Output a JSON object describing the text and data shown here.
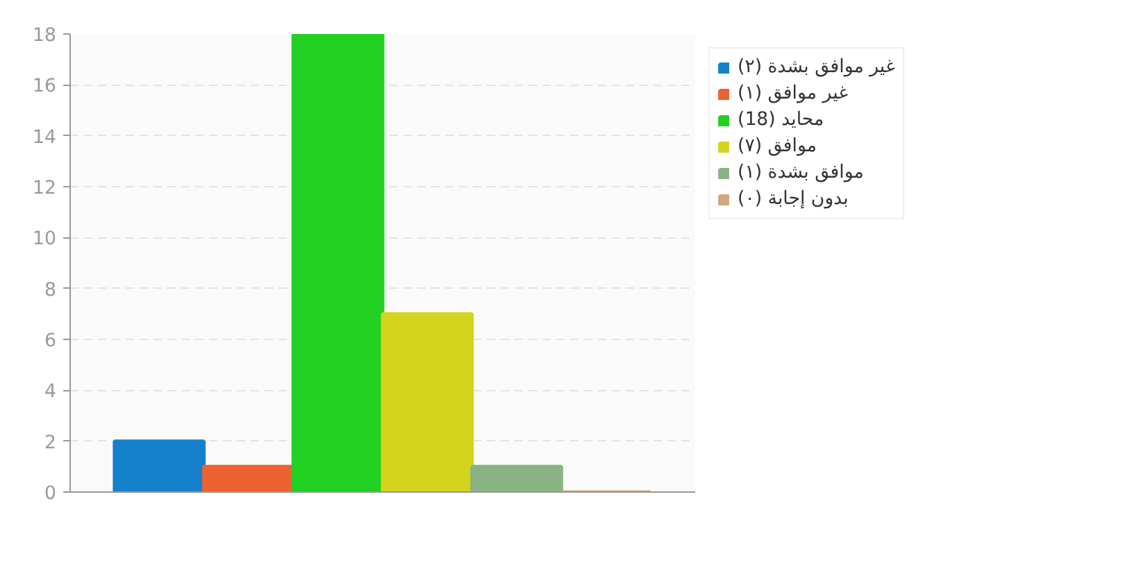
{
  "chart_data": {
    "type": "bar",
    "categories": [
      null
    ],
    "series": [
      {
        "name": "غير موافق بشدة (٢)",
        "color": "#1581cc",
        "values": [
          2
        ]
      },
      {
        "name": "غير موافق (١)",
        "color": "#ec6232",
        "values": [
          1
        ]
      },
      {
        "name": "محايد (18)",
        "color": "#22d022",
        "values": [
          18
        ]
      },
      {
        "name": "موافق (٧)",
        "color": "#d4d41e",
        "values": [
          7
        ]
      },
      {
        "name": "موافق بشدة (١)",
        "color": "#8ab384",
        "values": [
          1
        ]
      },
      {
        "name": "بدون إجابة (٠)",
        "color": "#d0a77a",
        "values": [
          0
        ]
      }
    ],
    "ylim": [
      0,
      18
    ],
    "yticks": [
      0,
      2,
      4,
      6,
      8,
      10,
      12,
      14,
      16,
      18
    ],
    "grid": "y",
    "legend": "right",
    "tick_labels": "y"
  }
}
